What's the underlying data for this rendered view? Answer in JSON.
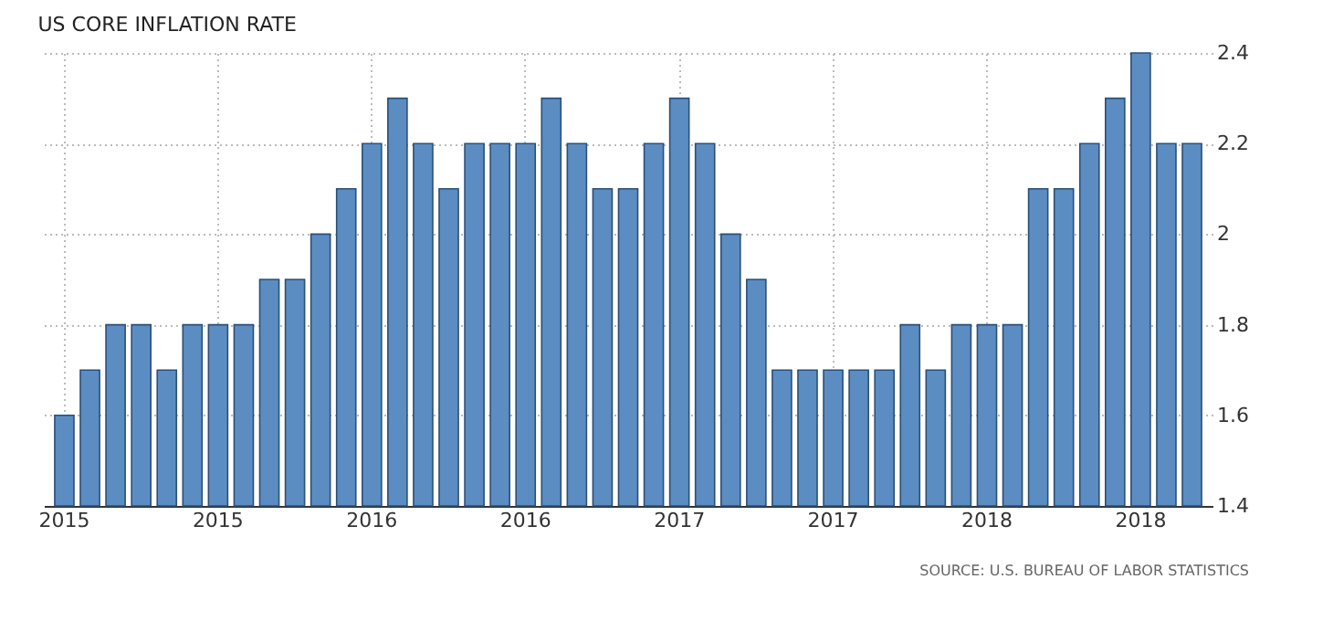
{
  "chart_data": {
    "type": "bar",
    "title": "US CORE INFLATION RATE",
    "categories": [
      "2015",
      null,
      null,
      null,
      null,
      null,
      "2015",
      null,
      null,
      null,
      null,
      null,
      "2016",
      null,
      null,
      null,
      null,
      null,
      "2016",
      null,
      null,
      null,
      null,
      null,
      "2017",
      null,
      null,
      null,
      null,
      null,
      "2017",
      null,
      null,
      null,
      null,
      null,
      "2018",
      null,
      null,
      null,
      null,
      null,
      "2018",
      null,
      null
    ],
    "values": [
      1.6,
      1.7,
      1.8,
      1.8,
      1.7,
      1.8,
      1.8,
      1.8,
      1.9,
      1.9,
      2.0,
      2.1,
      2.2,
      2.3,
      2.2,
      2.1,
      2.2,
      2.2,
      2.2,
      2.3,
      2.2,
      2.1,
      2.1,
      2.2,
      2.3,
      2.2,
      2.0,
      1.9,
      1.7,
      1.7,
      1.7,
      1.7,
      1.7,
      1.8,
      1.7,
      1.8,
      1.8,
      1.8,
      2.1,
      2.1,
      2.2,
      2.3,
      2.4,
      2.2,
      2.2
    ],
    "color": "#5b8dc2",
    "ylim": [
      1.4,
      2.4
    ],
    "yticks": [
      1.4,
      1.6,
      1.8,
      2,
      2.2,
      2.4
    ],
    "grid": true,
    "annotations": [
      "SOURCE: U.S. BUREAU OF LABOR STATISTICS"
    ]
  }
}
